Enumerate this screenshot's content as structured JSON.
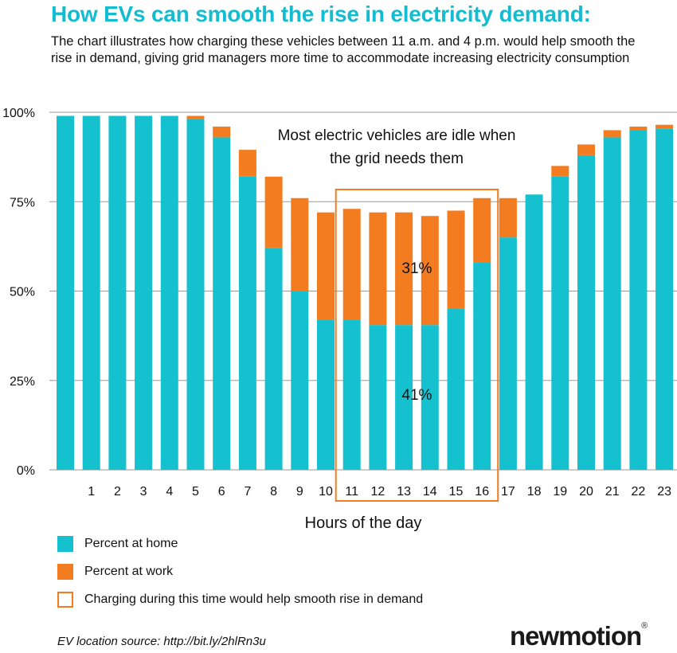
{
  "title": "How EVs can smooth the rise in electricity demand:",
  "subtitle": "The chart illustrates how charging these vehicles between 11 a.m. and 4 p.m. would help smooth the rise in demand, giving grid managers more time to accommodate increasing electricity consumption",
  "colors": {
    "title": "#13bcd0",
    "home": "#16c1cf",
    "work": "#f47c20",
    "highlight": "#f47c20",
    "grid": "#9a9a9a"
  },
  "chart_data": {
    "type": "bar",
    "stacked": true,
    "xlabel": "Hours of the day",
    "ylabel": "",
    "ylim": [
      0,
      100
    ],
    "yticks": [
      0,
      25,
      50,
      75,
      100
    ],
    "ytick_labels": [
      "0%",
      "25%",
      "50%",
      "75%",
      "100%"
    ],
    "categories": [
      "0",
      "1",
      "2",
      "3",
      "4",
      "5",
      "6",
      "7",
      "8",
      "9",
      "10",
      "11",
      "12",
      "13",
      "14",
      "15",
      "16",
      "17",
      "18",
      "19",
      "20",
      "21",
      "22",
      "23"
    ],
    "tick_labels": [
      "",
      "1",
      "2",
      "3",
      "4",
      "5",
      "6",
      "7",
      "8",
      "9",
      "10",
      "11",
      "12",
      "13",
      "14",
      "15",
      "16",
      "17",
      "18",
      "19",
      "20",
      "21",
      "22",
      "23"
    ],
    "series": [
      {
        "name": "Percent at home",
        "values": [
          99,
          99,
          99,
          99,
          99,
          98,
          93,
          82,
          62,
          50,
          42,
          42,
          40.5,
          40.5,
          40.5,
          45,
          58,
          65,
          77,
          82,
          88,
          93,
          95,
          95.5
        ]
      },
      {
        "name": "Percent at work",
        "values": [
          0,
          0,
          0,
          0,
          0,
          1,
          3,
          7.5,
          20,
          26,
          30,
          31,
          31.5,
          31.5,
          30.5,
          27.5,
          18,
          11,
          0,
          3,
          3,
          2,
          1,
          1
        ]
      }
    ],
    "highlight_range": [
      "11",
      "16"
    ],
    "annotations": {
      "idle_note": "Most electric vehicles are idle when the grid needs them",
      "work_pct": "31%",
      "home_pct": "41%"
    },
    "legend": [
      {
        "label": "Percent at home",
        "kind": "home"
      },
      {
        "label": "Percent at work",
        "kind": "work"
      },
      {
        "label": "Charging during this time would help smooth rise in demand",
        "kind": "highlight"
      }
    ]
  },
  "source_note": "EV location source: http://bit.ly/2hlRn3u",
  "logo": {
    "text": "newmotion",
    "mark": "®"
  }
}
